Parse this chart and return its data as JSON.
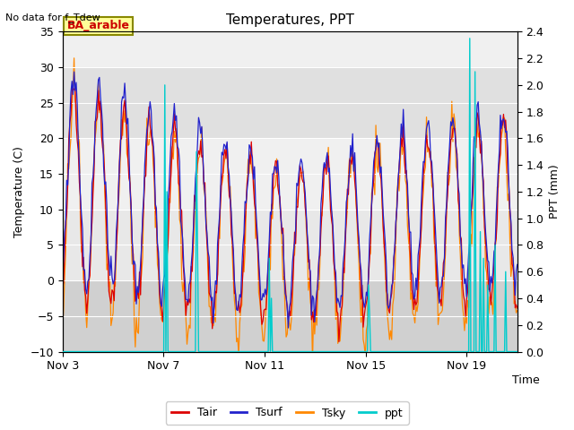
{
  "title": "Temperatures, PPT",
  "note": "No data for f_Tdew",
  "station_label": "BA_arable",
  "xlabel": "Time",
  "ylabel_left": "Temperature (C)",
  "ylabel_right": "PPT (mm)",
  "ylim_left": [
    -10,
    35
  ],
  "ylim_right": [
    0.0,
    2.4
  ],
  "yticks_left": [
    -10,
    -5,
    0,
    5,
    10,
    15,
    20,
    25,
    30,
    35
  ],
  "yticks_right": [
    0.0,
    0.2,
    0.4,
    0.6,
    0.8,
    1.0,
    1.2,
    1.4,
    1.6,
    1.8,
    2.0,
    2.2,
    2.4
  ],
  "xtick_positions": [
    0,
    4,
    8,
    12,
    16
  ],
  "xtick_labels": [
    "Nov 3",
    "Nov 7",
    "Nov 11",
    "Nov 15",
    "Nov 19"
  ],
  "xlim": [
    0,
    18
  ],
  "n_days": 18,
  "colors": {
    "Tair": "#dd0000",
    "Tsurf": "#2222cc",
    "Tsky": "#ff8800",
    "ppt": "#00cccc"
  },
  "band_dark": "#d8d8d8",
  "band_light": "#ececec",
  "plot_bg": "#e0e0e0",
  "fig_bg": "#ffffff",
  "legend_entries": [
    "Tair",
    "Tsurf",
    "Tsky",
    "ppt"
  ]
}
